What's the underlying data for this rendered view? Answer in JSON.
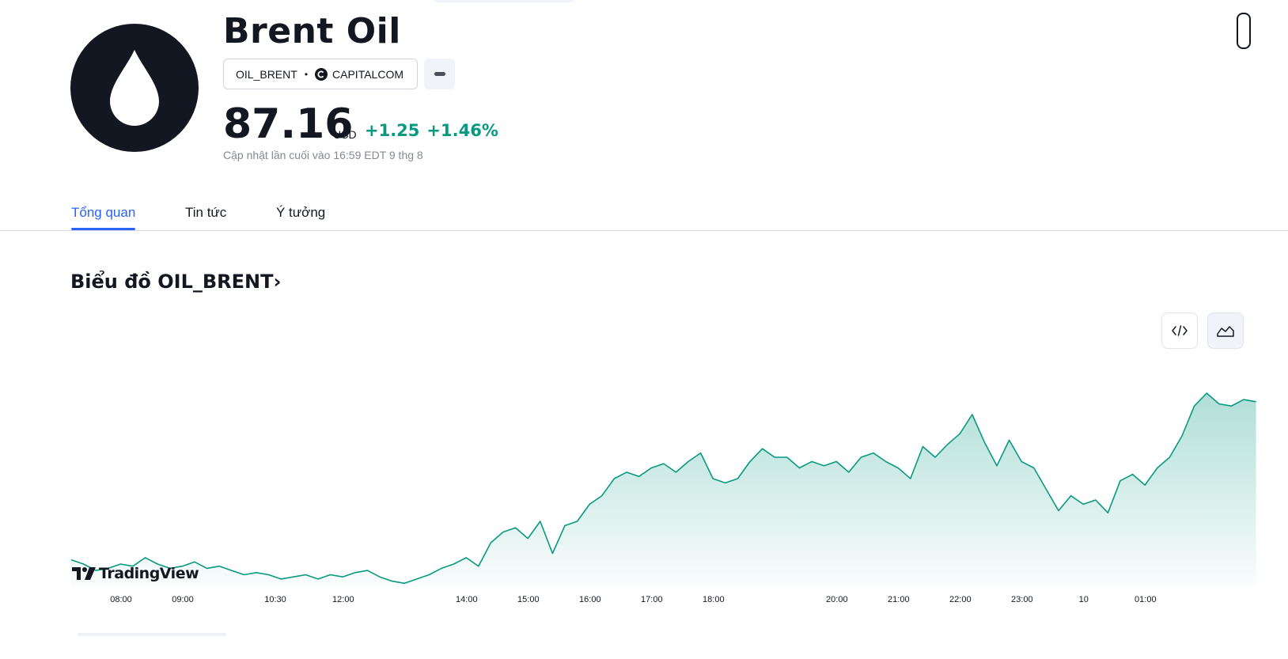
{
  "header": {
    "title": "Brent Oil",
    "symbol": "OIL_BRENT",
    "separator": "•",
    "exchange": "CAPITALCOM",
    "price": "87.16",
    "currency": "USD",
    "change": "+1.25",
    "change_percent": "+1.46%",
    "last_updated": "Cập nhật lần cuối vào 16:59 EDT 9 thg 8",
    "logo_icon": "oil-drop-icon",
    "exchange_icon": "capitalcom-logo-icon",
    "more_icon": "more-icon"
  },
  "tabs": [
    {
      "label": "Tổng quan",
      "active": true
    },
    {
      "label": "Tin tức",
      "active": false
    },
    {
      "label": "Ý tưởng",
      "active": false
    }
  ],
  "chart_section": {
    "title": "Biểu đồ OIL_BRENT",
    "title_arrow": "›",
    "embed_icon": "embed-code-icon",
    "chart_type_icon": "area-chart-icon",
    "watermark": "TradingView"
  },
  "colors": {
    "positive": "#089981",
    "active_tab": "#2962ff",
    "text": "#131722",
    "muted": "#868993"
  },
  "chart_data": {
    "type": "area",
    "x_ticks": [
      "08:00",
      "09:00",
      "10:30",
      "12:00",
      "14:00",
      "15:00",
      "16:00",
      "17:00",
      "18:00",
      "20:00",
      "21:00",
      "22:00",
      "23:00",
      "10",
      "01:00"
    ],
    "x_tick_positions": [
      1.0,
      2.0,
      3.5,
      4.6,
      6.6,
      7.6,
      8.6,
      9.6,
      10.6,
      12.6,
      13.6,
      14.6,
      15.6,
      16.6,
      17.6
    ],
    "series": [
      {
        "x": [
          0.0,
          0.2,
          0.4,
          0.6,
          0.8,
          1.0,
          1.2,
          1.4,
          1.6,
          1.8,
          2.0,
          2.2,
          2.4,
          2.6,
          2.8,
          3.0,
          3.2,
          3.4,
          3.6,
          3.8,
          4.0,
          4.2,
          4.4,
          4.6,
          4.8,
          5.0,
          5.2,
          5.4,
          5.6,
          5.8,
          6.0,
          6.2,
          6.4,
          6.6,
          6.8,
          7.0,
          7.2,
          7.4,
          7.6,
          7.8,
          8.0,
          8.2,
          8.4,
          8.6,
          8.8,
          9.0,
          9.2,
          9.4,
          9.6,
          9.8,
          10.0,
          10.2,
          10.4,
          10.6,
          10.8,
          11.0,
          11.2,
          11.4,
          11.6,
          11.8,
          12.0,
          12.2,
          12.4,
          12.6,
          12.8,
          13.0,
          13.2,
          13.4,
          13.6,
          13.8,
          14.0,
          14.2,
          14.4,
          14.6,
          14.8,
          15.0,
          15.2,
          15.4,
          15.6,
          15.8,
          16.0,
          16.2,
          16.4,
          16.6,
          16.8,
          17.0,
          17.2,
          17.4,
          17.6,
          17.8,
          18.0,
          18.2,
          18.4,
          18.6,
          18.8,
          19.0,
          19.2
        ],
        "values": [
          0.12,
          0.1,
          0.07,
          0.08,
          0.1,
          0.09,
          0.13,
          0.1,
          0.08,
          0.09,
          0.11,
          0.08,
          0.09,
          0.07,
          0.05,
          0.06,
          0.05,
          0.03,
          0.04,
          0.05,
          0.03,
          0.05,
          0.04,
          0.06,
          0.07,
          0.04,
          0.02,
          0.01,
          0.03,
          0.05,
          0.08,
          0.1,
          0.13,
          0.09,
          0.2,
          0.25,
          0.27,
          0.22,
          0.3,
          0.15,
          0.28,
          0.3,
          0.38,
          0.42,
          0.5,
          0.53,
          0.51,
          0.55,
          0.57,
          0.53,
          0.58,
          0.62,
          0.5,
          0.48,
          0.5,
          0.58,
          0.64,
          0.6,
          0.6,
          0.55,
          0.58,
          0.56,
          0.58,
          0.53,
          0.6,
          0.62,
          0.58,
          0.55,
          0.5,
          0.65,
          0.6,
          0.66,
          0.71,
          0.8,
          0.67,
          0.56,
          0.68,
          0.58,
          0.55,
          0.45,
          0.35,
          0.42,
          0.38,
          0.4,
          0.34,
          0.49,
          0.52,
          0.47,
          0.55,
          0.6,
          0.7,
          0.84,
          0.9,
          0.85,
          0.84,
          0.87,
          0.86
        ]
      }
    ],
    "ylim": [
      0,
      1
    ],
    "grid": false,
    "legend": "none"
  }
}
